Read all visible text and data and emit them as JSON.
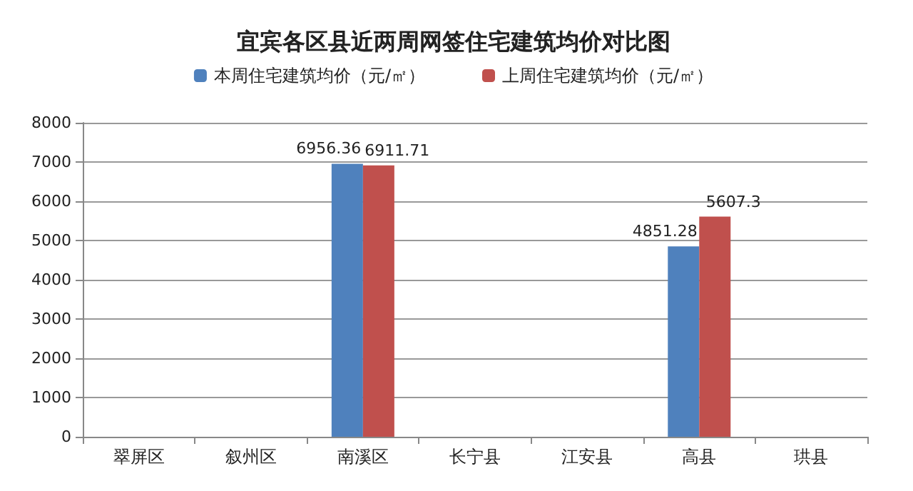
{
  "chart_data": {
    "type": "bar",
    "title": "宜宾各区县近两周网签住宅建筑均价对比图",
    "categories": [
      "翠屏区",
      "叙州区",
      "南溪区",
      "长宁县",
      "江安县",
      "高县",
      "珙县"
    ],
    "series": [
      {
        "name": "本周住宅建筑均价（元/㎡）",
        "color": "#4f81bd",
        "values": [
          null,
          null,
          6956.36,
          null,
          null,
          4851.28,
          null
        ],
        "value_labels": [
          null,
          null,
          "6956.36",
          null,
          null,
          "4851.28",
          null
        ]
      },
      {
        "name": "上周住宅建筑均价（元/㎡）",
        "color": "#c0504d",
        "values": [
          null,
          null,
          6911.71,
          null,
          null,
          5607.3,
          null
        ],
        "value_labels": [
          null,
          null,
          "6911.71",
          null,
          null,
          "5607.3",
          null
        ]
      }
    ],
    "ylim": [
      0,
      8000
    ],
    "yticks": [
      0,
      1000,
      2000,
      3000,
      4000,
      5000,
      6000,
      7000,
      8000
    ],
    "grid": "y",
    "legend": "top"
  }
}
